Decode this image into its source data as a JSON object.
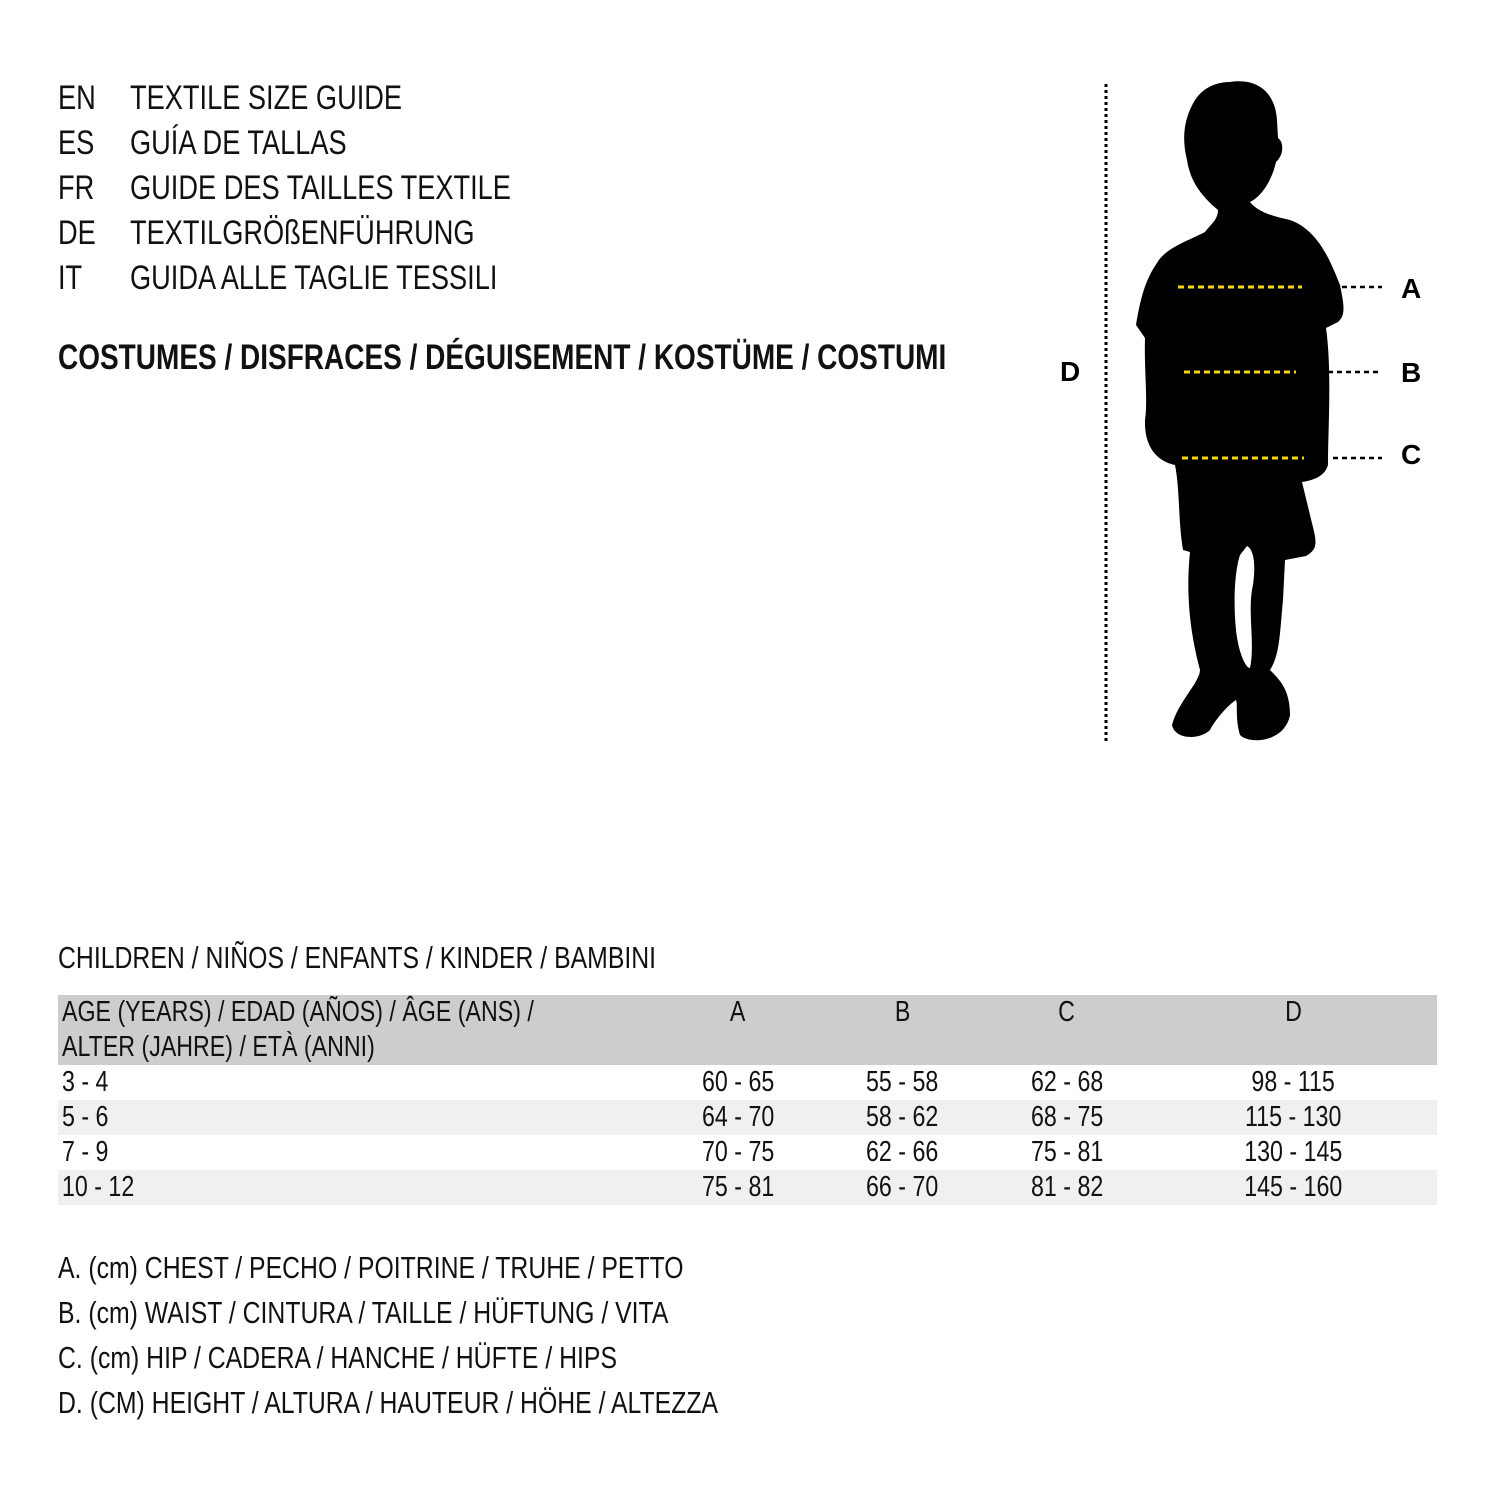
{
  "languages": [
    {
      "code": "EN",
      "title": "TEXTILE SIZE GUIDE"
    },
    {
      "code": "ES",
      "title": "GUÍA DE TALLAS"
    },
    {
      "code": "FR",
      "title": "GUIDE DES TAILLES TEXTILE"
    },
    {
      "code": "DE",
      "title": "TEXTILGRÖßENFÜHRUNG"
    },
    {
      "code": "IT",
      "title": "GUIDA ALLE TAGLIE TESSILI"
    }
  ],
  "category": "COSTUMES / DISFRACES / DÉGUISEMENT / KOSTÜME / COSTUMI",
  "figure": {
    "labels": {
      "a": "A",
      "b": "B",
      "c": "C",
      "d": "D"
    },
    "measure_line_color": "#f5d800"
  },
  "section_title": "CHILDREN / NIÑOS / ENFANTS / KINDER / BAMBINI",
  "table": {
    "header": {
      "age_line1": "AGE (YEARS) / EDAD (AÑOS) / ÂGE (ANS) /",
      "age_line2": "ALTER (JAHRE) / ETÀ (ANNI)",
      "a": "A",
      "b": "B",
      "c": "C",
      "d": "D"
    },
    "rows": [
      {
        "age": "3 - 4",
        "a": "60 - 65",
        "b": "55 - 58",
        "c": "62 - 68",
        "d": "98 - 115"
      },
      {
        "age": "5 - 6",
        "a": "64 - 70",
        "b": "58 - 62",
        "c": "68 - 75",
        "d": "115 - 130"
      },
      {
        "age": "7 - 9",
        "a": "70 - 75",
        "b": "62 - 66",
        "c": "75 - 81",
        "d": "130 - 145"
      },
      {
        "age": "10 - 12",
        "a": "75 - 81",
        "b": "66 - 70",
        "c": "81 - 82",
        "d": "145 - 160"
      }
    ]
  },
  "legend": [
    "A. (cm) CHEST / PECHO / POITRINE / TRUHE / PETTO",
    "B. (cm) WAIST / CINTURA / TAILLE / HÜFTUNG / VITA",
    "C. (cm) HIP / CADERA / HANCHE / HÜFTE / HIPS",
    "D. (CM) HEIGHT / ALTURA / HAUTEUR / HÖHE / ALTEZZA"
  ]
}
